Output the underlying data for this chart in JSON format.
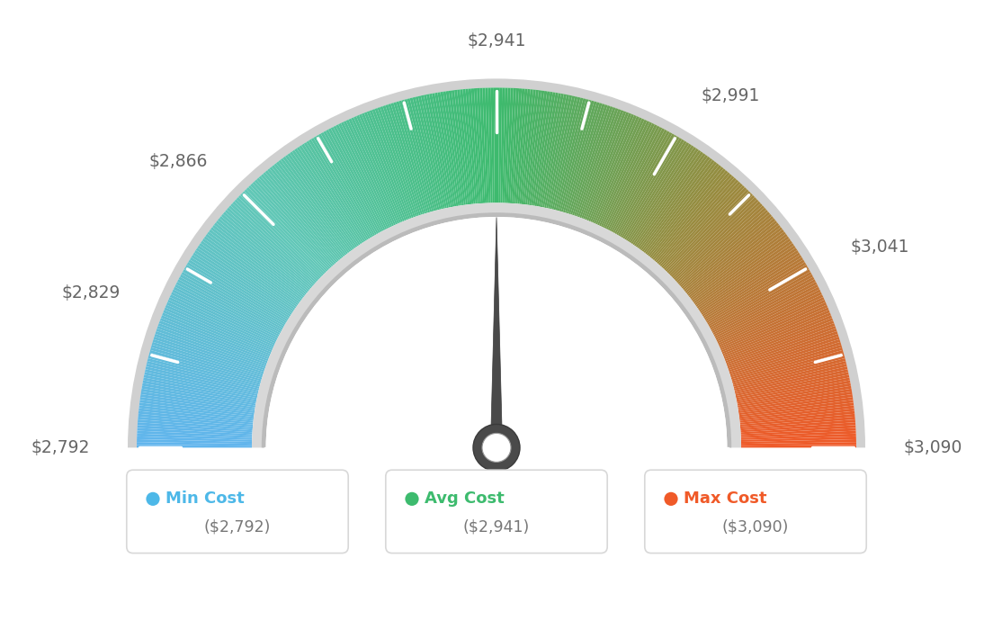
{
  "min_val": 2792,
  "max_val": 3090,
  "avg_val": 2941,
  "needle_val": 2941,
  "tick_labels": [
    "$2,792",
    "$2,829",
    "$2,866",
    "$2,941",
    "$2,991",
    "$3,041",
    "$3,090"
  ],
  "tick_values": [
    2792,
    2829,
    2866,
    2941,
    2991,
    3041,
    3090
  ],
  "legend": [
    {
      "label": "Min Cost",
      "value": "($2,792)",
      "color": "#4db8e8"
    },
    {
      "label": "Avg Cost",
      "value": "($2,941)",
      "color": "#3dbb6e"
    },
    {
      "label": "Max Cost",
      "value": "($3,090)",
      "color": "#f05a28"
    }
  ],
  "bg_color": "#ffffff",
  "R_out": 1.0,
  "R_in": 0.68,
  "color_stops": [
    [
      0.0,
      [
        0.38,
        0.71,
        0.93
      ]
    ],
    [
      0.25,
      [
        0.38,
        0.78,
        0.72
      ]
    ],
    [
      0.5,
      [
        0.24,
        0.73,
        0.43
      ]
    ],
    [
      0.72,
      [
        0.59,
        0.55,
        0.25
      ]
    ],
    [
      1.0,
      [
        0.94,
        0.35,
        0.16
      ]
    ]
  ]
}
